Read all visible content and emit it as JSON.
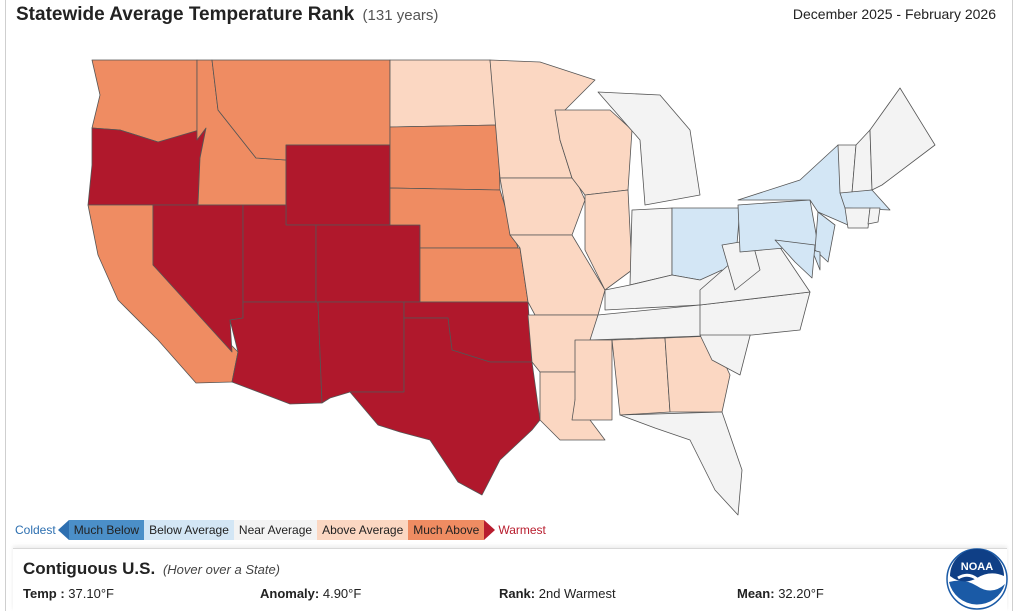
{
  "header": {
    "title": "Statewide Average Temperature Rank",
    "subtitle": "(131 years)",
    "period": "December 2025 - February 2026"
  },
  "legend": {
    "coldest_label": "Coldest",
    "warmest_label": "Warmest",
    "categories": [
      {
        "label": "Much Below",
        "color": "#4b8fc8"
      },
      {
        "label": "Below Average",
        "color": "#d3e6f5"
      },
      {
        "label": "Near Average",
        "color": "#f3f3f3"
      },
      {
        "label": "Above Average",
        "color": "#fbd7c2"
      },
      {
        "label": "Much Above",
        "color": "#ef8c62"
      }
    ],
    "record_warm_color": "#b0182c"
  },
  "states": {
    "record_warm": [
      "OR",
      "NV",
      "UT",
      "CO",
      "WY",
      "AZ",
      "NM",
      "TX",
      "OK"
    ],
    "much_above": [
      "WA",
      "ID",
      "MT",
      "CA",
      "SD",
      "NE",
      "KS"
    ],
    "above_average": [
      "ND",
      "MN",
      "IA",
      "MO",
      "AR",
      "LA",
      "WI",
      "IL",
      "MS",
      "AL",
      "GA"
    ],
    "below_average": [
      "OH",
      "PA",
      "NY",
      "NJ",
      "MA",
      "MD",
      "DE"
    ],
    "near_average": [
      "MI",
      "IN",
      "KY",
      "TN",
      "WV",
      "VA",
      "NC",
      "SC",
      "FL",
      "VT",
      "NH",
      "ME",
      "CT",
      "RI"
    ]
  },
  "panel": {
    "region": "Contiguous U.S.",
    "hint": "(Hover over a State)",
    "temp_label": "Temp :",
    "temp_value": "37.10°F",
    "anomaly_label": "Anomaly:",
    "anomaly_value": "4.90°F",
    "rank_label": "Rank:",
    "rank_value": "2nd Warmest",
    "mean_label": "Mean:",
    "mean_value": "32.20°F"
  },
  "logo": {
    "text": "NOAA",
    "color": "#1a5aa6"
  }
}
